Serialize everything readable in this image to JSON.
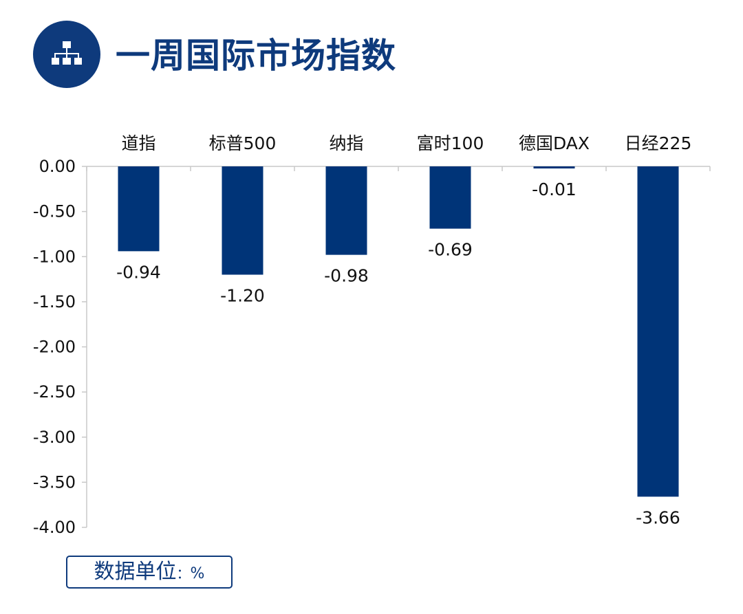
{
  "header": {
    "title": "一周国际市场指数",
    "icon": "sitemap-icon"
  },
  "colors": {
    "brand": "#0e3a7c",
    "bar": "#003478",
    "axis": "#c8c8c8",
    "text": "#111111"
  },
  "chart_data": {
    "type": "bar",
    "title": "",
    "xlabel": "",
    "ylabel": "",
    "categories": [
      "道指",
      "标普500",
      "纳指",
      "富时100",
      "德国DAX",
      "日经225"
    ],
    "values": [
      -0.94,
      -1.2,
      -0.98,
      -0.69,
      -0.01,
      -3.66
    ],
    "value_labels": [
      "-0.94",
      "-1.20",
      "-0.98",
      "-0.69",
      "-0.01",
      "-3.66"
    ],
    "ylim": [
      -4.0,
      0.0
    ],
    "yticks": [
      0.0,
      -0.5,
      -1.0,
      -1.5,
      -2.0,
      -2.5,
      -3.0,
      -3.5,
      -4.0
    ],
    "ytick_labels": [
      "0.00",
      "-0.50",
      "-1.00",
      "-1.50",
      "-2.00",
      "-2.50",
      "-3.00",
      "-3.50",
      "-4.00"
    ],
    "category_axis_position": "top",
    "grid": false,
    "legend": "none"
  },
  "footer": {
    "unit_label": "数据单位",
    "unit_separator": "：",
    "unit_symbol": "%"
  }
}
